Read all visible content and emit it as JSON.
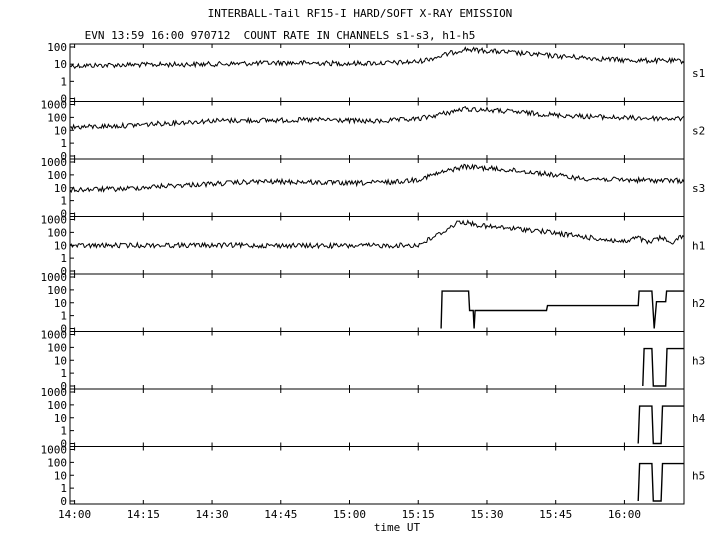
{
  "header": {
    "title": "INTERBALL-Tail RF15-I HARD/SOFT X-RAY EMISSION",
    "subtitle": "EVN 13:59 16:00 970712  COUNT RATE IN CHANNELS s1-s3, h1-h5"
  },
  "chart_data": {
    "type": "line",
    "layout": "stacked panels sharing time axis",
    "xlabel": "time UT",
    "x_ticks": [
      "14:00",
      "14:15",
      "14:30",
      "14:45",
      "15:00",
      "15:15",
      "15:30",
      "15:45",
      "16:00"
    ],
    "x_range": [
      "13:59",
      "16:13"
    ],
    "y_scale": "log",
    "grid": false,
    "legend": "none; channel name printed at right of each panel",
    "series": [
      {
        "name": "s1",
        "y_ticks": [
          "100",
          "10",
          "1",
          "0"
        ],
        "ylim": [
          0,
          150
        ],
        "points": [
          [
            "13:59",
            8
          ],
          [
            "14:10",
            9
          ],
          [
            "14:30",
            10
          ],
          [
            "14:45",
            12
          ],
          [
            "15:00",
            11
          ],
          [
            "15:10",
            12
          ],
          [
            "15:15",
            14
          ],
          [
            "15:20",
            30
          ],
          [
            "15:25",
            75
          ],
          [
            "15:30",
            60
          ],
          [
            "15:45",
            30
          ],
          [
            "16:00",
            17
          ],
          [
            "16:13",
            15
          ]
        ]
      },
      {
        "name": "s2",
        "y_ticks": [
          "1000",
          "100",
          "10",
          "1",
          "0"
        ],
        "ylim": [
          0,
          1500
        ],
        "points": [
          [
            "13:59",
            17
          ],
          [
            "14:10",
            22
          ],
          [
            "14:20",
            35
          ],
          [
            "14:30",
            55
          ],
          [
            "14:45",
            60
          ],
          [
            "14:55",
            65
          ],
          [
            "15:05",
            48
          ],
          [
            "15:15",
            75
          ],
          [
            "15:20",
            180
          ],
          [
            "15:25",
            450
          ],
          [
            "15:30",
            380
          ],
          [
            "15:45",
            150
          ],
          [
            "16:00",
            90
          ],
          [
            "16:13",
            80
          ]
        ]
      },
      {
        "name": "s3",
        "y_ticks": [
          "1000",
          "100",
          "10",
          "1",
          "0"
        ],
        "ylim": [
          0,
          1500
        ],
        "points": [
          [
            "13:59",
            7
          ],
          [
            "14:10",
            8
          ],
          [
            "14:20",
            14
          ],
          [
            "14:30",
            20
          ],
          [
            "14:40",
            30
          ],
          [
            "14:50",
            28
          ],
          [
            "15:00",
            22
          ],
          [
            "15:10",
            28
          ],
          [
            "15:15",
            45
          ],
          [
            "15:20",
            150
          ],
          [
            "15:25",
            450
          ],
          [
            "15:30",
            330
          ],
          [
            "15:40",
            160
          ],
          [
            "15:50",
            55
          ],
          [
            "16:00",
            40
          ],
          [
            "16:13",
            35
          ]
        ]
      },
      {
        "name": "h1",
        "y_ticks": [
          "1000",
          "100",
          "10",
          "1",
          "0"
        ],
        "ylim": [
          0,
          1500
        ],
        "points": [
          [
            "13:59",
            9
          ],
          [
            "14:15",
            10
          ],
          [
            "14:30",
            10
          ],
          [
            "15:00",
            9
          ],
          [
            "15:15",
            10
          ],
          [
            "15:20",
            90
          ],
          [
            "15:24",
            700
          ],
          [
            "15:30",
            280
          ],
          [
            "15:40",
            150
          ],
          [
            "15:50",
            50
          ],
          [
            "16:00",
            18
          ],
          [
            "16:03",
            40
          ],
          [
            "16:05",
            15
          ],
          [
            "16:08",
            40
          ],
          [
            "16:10",
            15
          ],
          [
            "16:13",
            60
          ]
        ]
      },
      {
        "name": "h2",
        "y_ticks": [
          "1000",
          "100",
          "10",
          "1",
          "0"
        ],
        "ylim": [
          0,
          1500
        ],
        "points": [
          [
            "15:20",
            0
          ],
          [
            "15:20.2",
            80
          ],
          [
            "15:26",
            80
          ],
          [
            "15:26.2",
            2.5
          ],
          [
            "15:27",
            2.5
          ],
          [
            "15:27.2",
            0
          ],
          [
            "15:27.4",
            2.5
          ],
          [
            "15:43",
            2.5
          ],
          [
            "15:43.2",
            6
          ],
          [
            "16:03",
            6
          ],
          [
            "16:03.2",
            80
          ],
          [
            "16:06",
            80
          ],
          [
            "16:06.5",
            0
          ],
          [
            "16:07",
            12
          ],
          [
            "16:09",
            12
          ],
          [
            "16:09.2",
            80
          ],
          [
            "16:13",
            80
          ]
        ]
      },
      {
        "name": "h3",
        "y_ticks": [
          "1000",
          "100",
          "10",
          "1",
          "0"
        ],
        "ylim": [
          0,
          1500
        ],
        "points": [
          [
            "16:04",
            0
          ],
          [
            "16:04.3",
            80
          ],
          [
            "16:06",
            80
          ],
          [
            "16:06.3",
            0
          ],
          [
            "16:09",
            0
          ],
          [
            "16:09.3",
            80
          ],
          [
            "16:13",
            80
          ]
        ]
      },
      {
        "name": "h4",
        "y_ticks": [
          "1000",
          "100",
          "10",
          "1",
          "0"
        ],
        "ylim": [
          0,
          1500
        ],
        "points": [
          [
            "16:03",
            0
          ],
          [
            "16:03.3",
            80
          ],
          [
            "16:06",
            80
          ],
          [
            "16:06.3",
            0
          ],
          [
            "16:08",
            0
          ],
          [
            "16:08.3",
            80
          ],
          [
            "16:13",
            80
          ]
        ]
      },
      {
        "name": "h5",
        "y_ticks": [
          "1000",
          "100",
          "10",
          "1",
          "0"
        ],
        "ylim": [
          0,
          1500
        ],
        "points": [
          [
            "16:03",
            0
          ],
          [
            "16:03.3",
            80
          ],
          [
            "16:06",
            80
          ],
          [
            "16:06.3",
            0
          ],
          [
            "16:08",
            0
          ],
          [
            "16:08.3",
            80
          ],
          [
            "16:13",
            80
          ]
        ]
      }
    ]
  }
}
